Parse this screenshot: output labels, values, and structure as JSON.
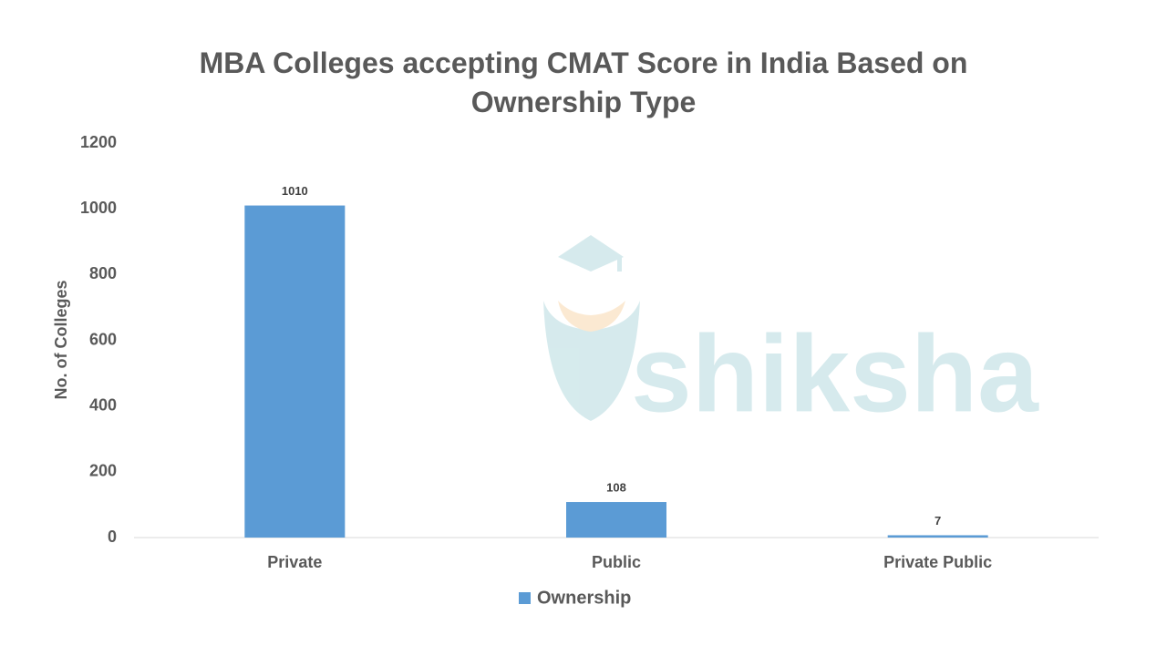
{
  "chart_data": {
    "type": "bar",
    "title": "MBA Colleges accepting CMAT Score in India Based on Ownership Type",
    "y_label": "No. of Colleges",
    "categories": [
      "Private",
      "Public",
      "Private Public"
    ],
    "series": [
      {
        "name": "Ownership",
        "color": "#5b9bd5",
        "values": [
          1010,
          108,
          7
        ]
      }
    ],
    "ylim": [
      0,
      1200
    ],
    "yticks": [
      0,
      200,
      400,
      600,
      800,
      1000,
      1200
    ],
    "grid": false,
    "legend": "bottom"
  },
  "watermark": "shiksha"
}
